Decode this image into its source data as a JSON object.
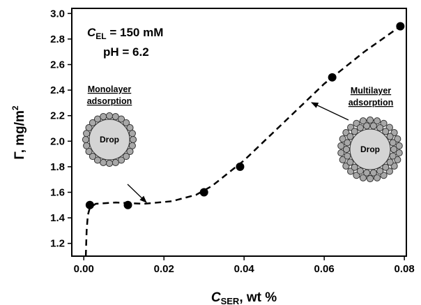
{
  "chart_data": {
    "type": "scatter",
    "xlabel": {
      "main": "C",
      "sub": "SER",
      "rest": ", wt %"
    },
    "ylabel": {
      "main": "Γ, mg/m",
      "sup": "2"
    },
    "x": [
      0.0015,
      0.011,
      0.03,
      0.039,
      0.062,
      0.079
    ],
    "values": [
      1.5,
      1.5,
      1.6,
      1.8,
      2.5,
      2.9
    ],
    "color": "#000000",
    "line": {
      "x": [
        0.0005,
        0.0007,
        0.001,
        0.0015,
        0.003,
        0.008,
        0.015,
        0.022,
        0.028,
        0.032,
        0.036,
        0.04,
        0.05,
        0.06,
        0.07,
        0.079
      ],
      "values": [
        1.1,
        1.3,
        1.42,
        1.48,
        1.51,
        1.52,
        1.51,
        1.53,
        1.58,
        1.65,
        1.75,
        1.85,
        2.15,
        2.45,
        2.7,
        2.9
      ],
      "style": "dashed"
    },
    "xlim": [
      -0.003,
      0.0805
    ],
    "ylim": [
      1.1,
      3.04
    ],
    "xticks": [
      {
        "value": 0,
        "label": "0.00"
      },
      0.02,
      0.04,
      0.06,
      0.08
    ],
    "yticks": [
      1.2,
      1.4,
      1.6,
      1.8,
      {
        "value": 2,
        "label": "2.0"
      },
      2.2,
      2.4,
      2.6,
      2.8,
      {
        "value": 3,
        "label": "3.0"
      }
    ],
    "annotations": {
      "concentration": {
        "main": "C",
        "sub": "EL",
        "rest": " = 150 mM"
      },
      "ph": "pH = 6.2",
      "monolayer": [
        "Monolayer",
        "adsorption"
      ],
      "multilayer": [
        "Multilayer",
        "adsorption"
      ],
      "drop": "Drop"
    }
  }
}
